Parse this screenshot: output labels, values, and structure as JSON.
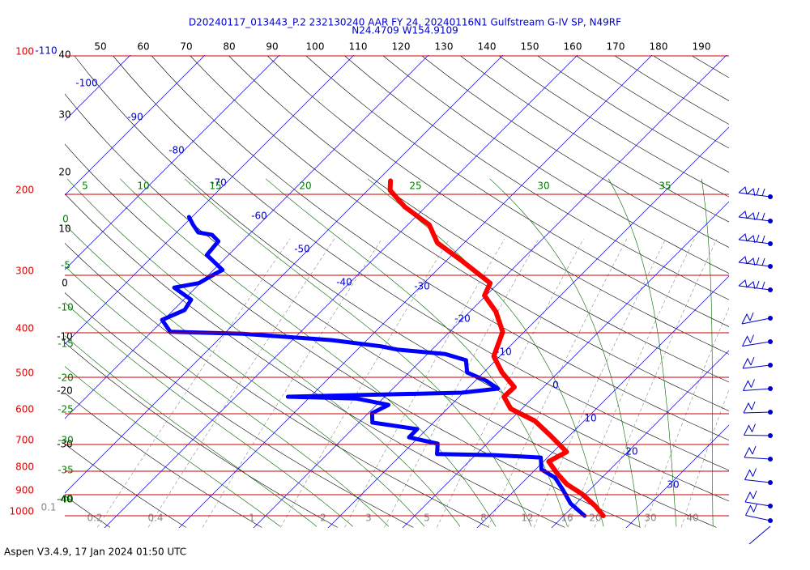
{
  "chart_data": {
    "type": "skew-t",
    "title": "D20240117_013443_P.2 232130240 AAR FY 24, 20240116N1 Gulfstream G-IV SP, N49RF",
    "subtitle": "N24.4709 W154.9109",
    "footer": "Aspen V3.4.9, 17 Jan 2024  01:50 UTC",
    "pressure_ticks": [
      100,
      200,
      300,
      400,
      500,
      600,
      700,
      800,
      900,
      1000
    ],
    "isotherm_ticks": [
      -110,
      -100,
      -90,
      -80,
      -70,
      -60,
      -50,
      -40,
      -30,
      -20,
      -10,
      0,
      10,
      20,
      30
    ],
    "top_ticks": [
      50,
      60,
      70,
      80,
      90,
      100,
      110,
      120,
      130,
      140,
      150,
      160,
      170,
      180,
      190
    ],
    "left_ticks": [
      40,
      30,
      20,
      10,
      0,
      -10,
      -20,
      -30,
      -40
    ],
    "top_green_ticks": [
      5,
      10,
      15,
      20,
      25,
      30,
      35
    ],
    "left_green_ticks": [
      0,
      -5,
      -10,
      -15,
      -20,
      -25,
      -30,
      -35,
      -40
    ],
    "mixing_ratio_ticks": [
      0.1,
      0.2,
      0.4,
      1,
      2,
      3,
      5,
      8,
      12,
      16,
      20,
      30,
      40
    ],
    "series": [
      {
        "color": "#ff0000",
        "pressure": [
          1000,
          952,
          896,
          854,
          810,
          762,
          726,
          670,
          622,
          585,
          551,
          525,
          488,
          450,
          398,
          360,
          332,
          312,
          279,
          255,
          233,
          213,
          196,
          187
        ],
        "temperature": [
          25.3,
          22.9,
          19.5,
          16.2,
          13.5,
          10.7,
          11.8,
          7.5,
          3.4,
          -1.5,
          -4.0,
          -3.9,
          -7.5,
          -10.8,
          -12.9,
          -16.5,
          -20.2,
          -21.1,
          -27.9,
          -33.6,
          -37.1,
          -42.8,
          -47.0,
          -48.2
        ]
      },
      {
        "color": "#0000ff",
        "pressure": [
          1000,
          941,
          878,
          826,
          793,
          747,
          738,
          734,
          697,
          675,
          648,
          627,
          598,
          574,
          556,
          551,
          540,
          529,
          508,
          488,
          459,
          445,
          435,
          428,
          415,
          402,
          398,
          375,
          357,
          339,
          319,
          312,
          298,
          292,
          271,
          253,
          245,
          242,
          233,
          224
        ],
        "temperature": [
          22.8,
          19.3,
          16.4,
          13.7,
          10.8,
          9.1,
          2.5,
          -5.3,
          -6.6,
          -11.3,
          -11.3,
          -18.2,
          -19.5,
          -18.4,
          -23.6,
          -33.0,
          -10.2,
          -5.9,
          -8.6,
          -12.2,
          -14.0,
          -17.6,
          -24.7,
          -27.3,
          -34.7,
          -47.5,
          -57.5,
          -60.2,
          -58.5,
          -59.0,
          -62.9,
          -60.2,
          -59.3,
          -58.8,
          -62.9,
          -63.2,
          -64.9,
          -67.1,
          -68.8,
          -70.4
        ]
      }
    ]
  }
}
